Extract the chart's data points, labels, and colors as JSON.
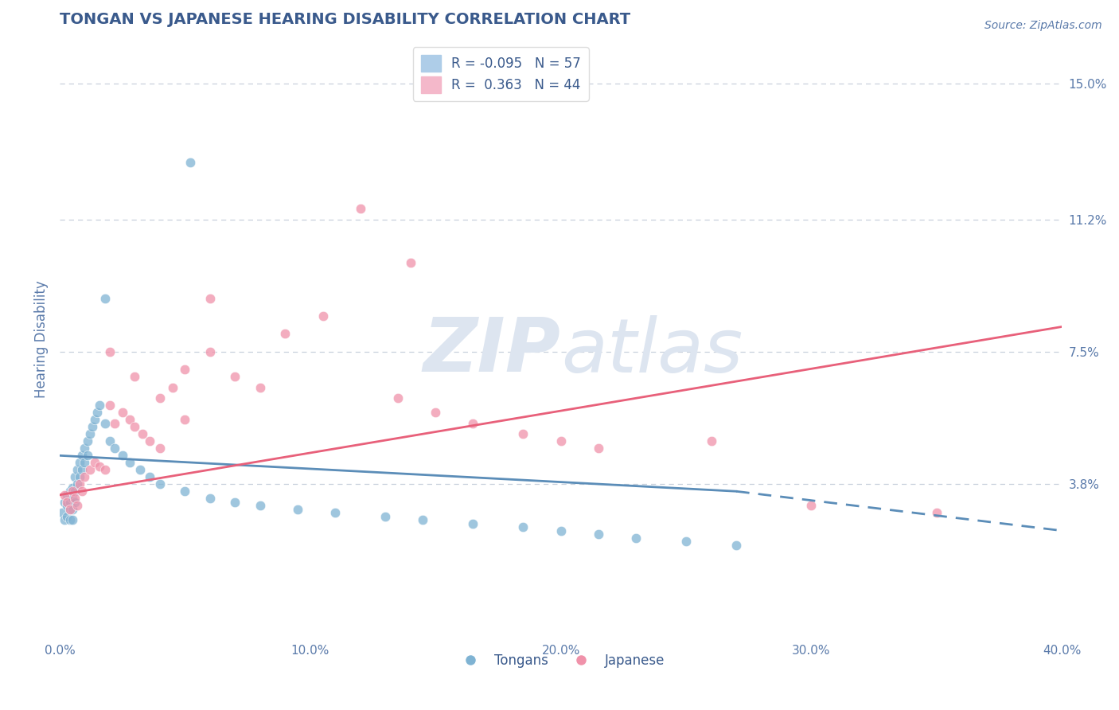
{
  "title": "TONGAN VS JAPANESE HEARING DISABILITY CORRELATION CHART",
  "source": "Source: ZipAtlas.com",
  "ylabel": "Hearing Disability",
  "legend_labels": [
    "Tongans",
    "Japanese"
  ],
  "r_values": [
    -0.095,
    0.363
  ],
  "n_values": [
    57,
    44
  ],
  "xlim": [
    0.0,
    0.4
  ],
  "ylim": [
    -0.005,
    0.162
  ],
  "yticks": [
    0.038,
    0.075,
    0.112,
    0.15
  ],
  "ytick_labels": [
    "3.8%",
    "7.5%",
    "11.2%",
    "15.0%"
  ],
  "xticks": [
    0.0,
    0.1,
    0.2,
    0.3,
    0.4
  ],
  "xtick_labels": [
    "0.0%",
    "10.0%",
    "20.0%",
    "30.0%",
    "40.0%"
  ],
  "blue_color": "#5b8db8",
  "pink_color": "#e8607a",
  "blue_scatter_color": "#7fb3d3",
  "pink_scatter_color": "#f092aa",
  "background_color": "#ffffff",
  "grid_color": "#c8d0dc",
  "title_color": "#3a5a8c",
  "axis_label_color": "#5a7aaa",
  "tick_label_color": "#5a7aaa",
  "watermark_color": "#dde5f0",
  "blue_points_x": [
    0.001,
    0.002,
    0.002,
    0.003,
    0.003,
    0.003,
    0.004,
    0.004,
    0.004,
    0.004,
    0.005,
    0.005,
    0.005,
    0.005,
    0.006,
    0.006,
    0.006,
    0.007,
    0.007,
    0.008,
    0.008,
    0.009,
    0.009,
    0.01,
    0.01,
    0.011,
    0.011,
    0.012,
    0.013,
    0.014,
    0.015,
    0.016,
    0.018,
    0.02,
    0.022,
    0.025,
    0.028,
    0.032,
    0.036,
    0.04,
    0.05,
    0.06,
    0.07,
    0.08,
    0.095,
    0.11,
    0.13,
    0.145,
    0.165,
    0.185,
    0.2,
    0.215,
    0.23,
    0.25,
    0.27,
    0.052,
    0.018
  ],
  "blue_points_y": [
    0.03,
    0.033,
    0.028,
    0.035,
    0.032,
    0.029,
    0.036,
    0.033,
    0.031,
    0.028,
    0.037,
    0.034,
    0.031,
    0.028,
    0.04,
    0.036,
    0.033,
    0.042,
    0.038,
    0.044,
    0.04,
    0.046,
    0.042,
    0.048,
    0.044,
    0.05,
    0.046,
    0.052,
    0.054,
    0.056,
    0.058,
    0.06,
    0.055,
    0.05,
    0.048,
    0.046,
    0.044,
    0.042,
    0.04,
    0.038,
    0.036,
    0.034,
    0.033,
    0.032,
    0.031,
    0.03,
    0.029,
    0.028,
    0.027,
    0.026,
    0.025,
    0.024,
    0.023,
    0.022,
    0.021,
    0.128,
    0.09
  ],
  "pink_points_x": [
    0.002,
    0.003,
    0.004,
    0.005,
    0.006,
    0.007,
    0.008,
    0.009,
    0.01,
    0.012,
    0.014,
    0.016,
    0.018,
    0.02,
    0.022,
    0.025,
    0.028,
    0.03,
    0.033,
    0.036,
    0.04,
    0.045,
    0.05,
    0.06,
    0.07,
    0.08,
    0.09,
    0.105,
    0.12,
    0.135,
    0.15,
    0.165,
    0.185,
    0.2,
    0.215,
    0.26,
    0.3,
    0.35,
    0.02,
    0.03,
    0.04,
    0.05,
    0.06,
    0.14
  ],
  "pink_points_y": [
    0.035,
    0.033,
    0.031,
    0.036,
    0.034,
    0.032,
    0.038,
    0.036,
    0.04,
    0.042,
    0.044,
    0.043,
    0.042,
    0.06,
    0.055,
    0.058,
    0.056,
    0.054,
    0.052,
    0.05,
    0.048,
    0.065,
    0.07,
    0.075,
    0.068,
    0.065,
    0.08,
    0.085,
    0.115,
    0.062,
    0.058,
    0.055,
    0.052,
    0.05,
    0.048,
    0.05,
    0.032,
    0.03,
    0.075,
    0.068,
    0.062,
    0.056,
    0.09,
    0.1
  ],
  "blue_trend_x0": 0.0,
  "blue_trend_x1_solid": 0.27,
  "blue_trend_x1_dash": 0.4,
  "blue_trend_y0": 0.046,
  "blue_trend_y1_solid": 0.036,
  "blue_trend_y1_dash": 0.025,
  "pink_trend_x0": 0.0,
  "pink_trend_x1": 0.4,
  "pink_trend_y0": 0.035,
  "pink_trend_y1": 0.082
}
